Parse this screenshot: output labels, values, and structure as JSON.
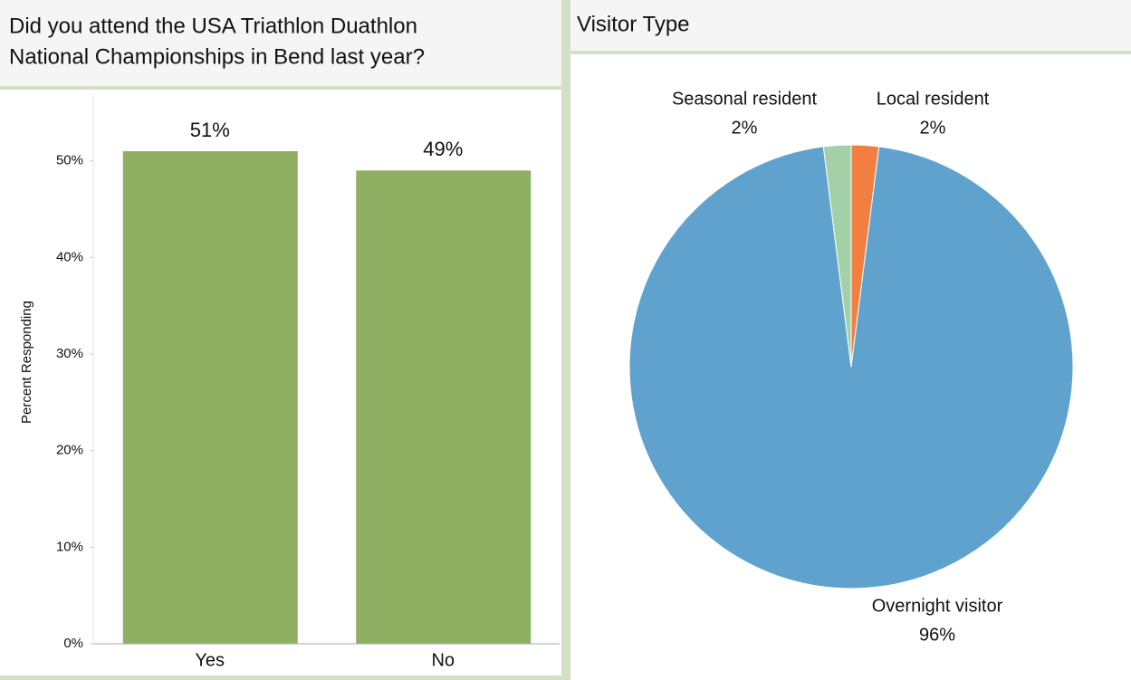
{
  "chart_data": [
    {
      "type": "bar",
      "title": [
        "Did you attend the USA Triathlon Duathlon",
        "National Championships in Bend last year?"
      ],
      "ylabel": "Percent Responding",
      "categories": [
        "Yes",
        "No"
      ],
      "values": [
        51,
        49
      ],
      "value_labels": [
        "51%",
        "49%"
      ],
      "color": "#8fb063",
      "ylim": [
        0,
        57
      ],
      "yticks": [
        {
          "value": 0,
          "label": "0%"
        },
        {
          "value": 10,
          "label": "10%"
        },
        {
          "value": 20,
          "label": "20%"
        },
        {
          "value": 30,
          "label": "30%"
        },
        {
          "value": 40,
          "label": "40%"
        },
        {
          "value": 50,
          "label": "50%"
        }
      ]
    },
    {
      "type": "pie",
      "title": "Visitor Type",
      "categories": [
        "Local resident",
        "Overnight visitor",
        "Seasonal resident"
      ],
      "values": [
        2,
        96,
        2
      ],
      "value_labels": [
        "2%",
        "96%",
        "2%"
      ],
      "colors": [
        "#f07f41",
        "#5fa2ce",
        "#a4d0a8"
      ]
    }
  ]
}
